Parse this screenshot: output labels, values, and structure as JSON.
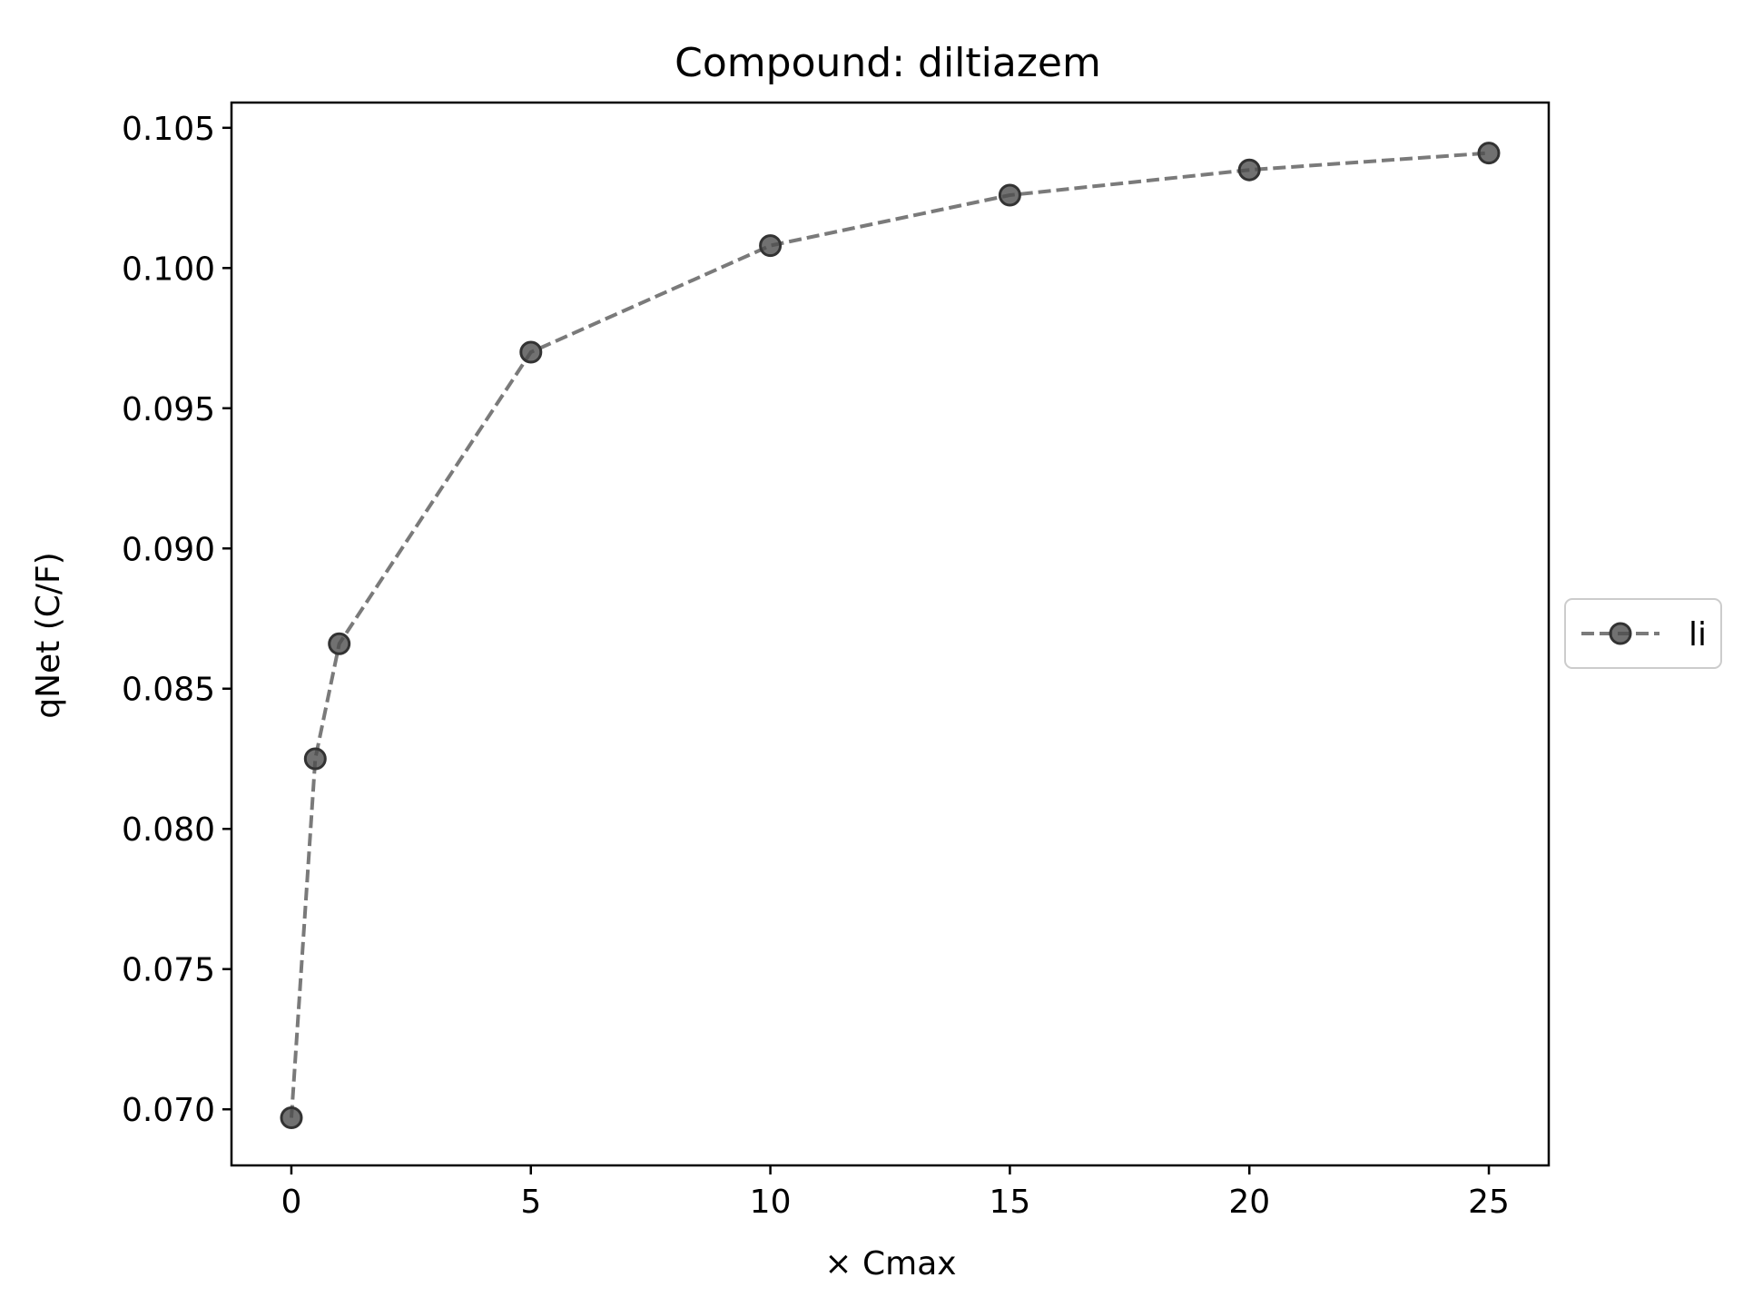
{
  "chart_data": {
    "type": "line",
    "title": "Compound: diltiazem",
    "xlabel": "× Cmax",
    "ylabel": "qNet (C/F)",
    "xlim": [
      -1.25,
      26.25
    ],
    "ylim": [
      0.068,
      0.1059
    ],
    "xticks": [
      0,
      5,
      10,
      15,
      20,
      25
    ],
    "xtick_labels": [
      "0",
      "5",
      "10",
      "15",
      "20",
      "25"
    ],
    "yticks": [
      0.07,
      0.075,
      0.08,
      0.085,
      0.09,
      0.095,
      0.1,
      0.105
    ],
    "ytick_labels": [
      "0.070",
      "0.075",
      "0.080",
      "0.085",
      "0.090",
      "0.095",
      "0.100",
      "0.105"
    ],
    "grid": false,
    "legend_position": "center-right-outside",
    "series": [
      {
        "name": "li",
        "color": "#4d4d4d",
        "line_style": "dashed",
        "marker": "circle",
        "x": [
          0,
          0.5,
          1,
          5,
          10,
          15,
          20,
          25
        ],
        "y": [
          0.0697,
          0.0825,
          0.0866,
          0.097,
          0.1008,
          0.1026,
          0.1035,
          0.1041
        ]
      }
    ]
  }
}
